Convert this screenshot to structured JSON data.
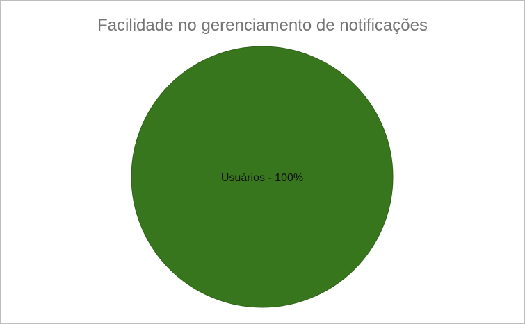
{
  "chart_data": {
    "type": "pie",
    "title": "Facilidade no gerenciamento de notificações",
    "slices": [
      {
        "label": "Usuários - 100%",
        "value": 100,
        "color": "#38761d"
      }
    ]
  }
}
